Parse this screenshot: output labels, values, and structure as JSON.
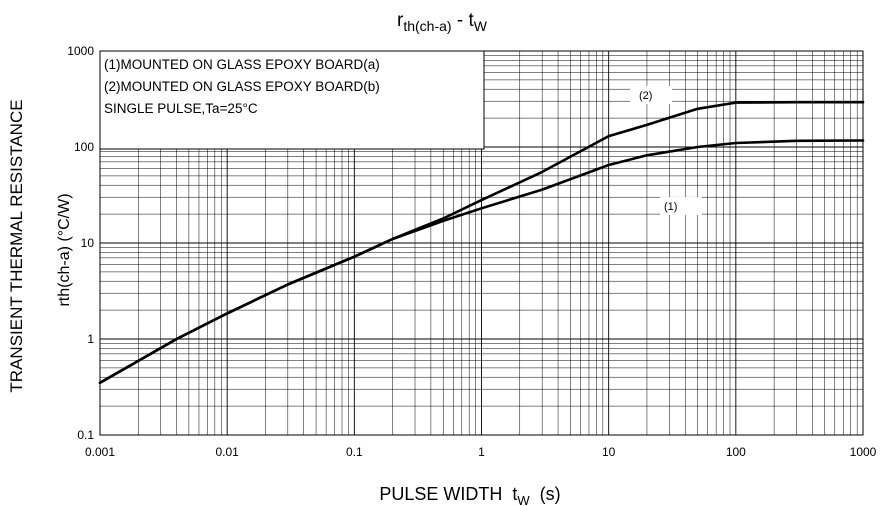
{
  "chart_data": {
    "type": "line",
    "title": {
      "main": "r",
      "main_sub": "th(ch-a)",
      "sep": " - ",
      "var": "t",
      "var_sub": "W"
    },
    "xlabel": {
      "text": "PULSE WIDTH  t",
      "sub": "W",
      "unit": "  (s)"
    },
    "ylabel_outer": "TRANSIENT THERMAL RESISTANCE",
    "ylabel_inner": "rth(ch-a) (°C/W)",
    "x_scale": "log",
    "y_scale": "log",
    "xlim": [
      0.001,
      1000
    ],
    "ylim": [
      0.1,
      1000
    ],
    "grid": true,
    "x_ticks": [
      {
        "value": 0.001,
        "label": "0.001"
      },
      {
        "value": 0.01,
        "label": "0.01"
      },
      {
        "value": 0.1,
        "label": "0.1"
      },
      {
        "value": 1,
        "label": "1"
      },
      {
        "value": 10,
        "label": "10"
      },
      {
        "value": 100,
        "label": "100"
      },
      {
        "value": 1000,
        "label": "1000"
      }
    ],
    "y_ticks": [
      {
        "value": 0.1,
        "label": "0.1"
      },
      {
        "value": 1,
        "label": "1"
      },
      {
        "value": 10,
        "label": "10"
      },
      {
        "value": 100,
        "label": "100"
      },
      {
        "value": 1000,
        "label": "1000"
      }
    ],
    "legend_box": {
      "placement": "top-left",
      "lines": [
        "(1)MOUNTED ON GLASS EPOXY BOARD(a)",
        "(2)MOUNTED ON GLASS EPOXY BOARD(b)",
        "SINGLE PULSE,Ta=25°C"
      ]
    },
    "series": [
      {
        "name": "(1)",
        "label_at": {
          "x": 18,
          "y": 13
        },
        "points": [
          [
            0.001,
            0.35
          ],
          [
            0.004,
            1.0
          ],
          [
            0.01,
            1.85
          ],
          [
            0.03,
            3.7
          ],
          [
            0.1,
            7.2
          ],
          [
            0.2,
            11.0
          ],
          [
            0.5,
            17.0
          ],
          [
            1,
            23.0
          ],
          [
            3,
            36.0
          ],
          [
            10,
            65.0
          ],
          [
            20,
            82.0
          ],
          [
            50,
            100.0
          ],
          [
            100,
            110.0
          ],
          [
            300,
            116.0
          ],
          [
            1000,
            117.0
          ]
        ]
      },
      {
        "name": "(2)",
        "label_at": {
          "x": 30,
          "y": 400
        },
        "points": [
          [
            0.001,
            0.35
          ],
          [
            0.004,
            1.0
          ],
          [
            0.01,
            1.85
          ],
          [
            0.03,
            3.7
          ],
          [
            0.1,
            7.2
          ],
          [
            0.2,
            11.0
          ],
          [
            0.5,
            18.0
          ],
          [
            1,
            28.0
          ],
          [
            3,
            55.0
          ],
          [
            10,
            130.0
          ],
          [
            20,
            170.0
          ],
          [
            50,
            250.0
          ],
          [
            100,
            290.0
          ],
          [
            300,
            293.0
          ],
          [
            1000,
            293.0
          ]
        ]
      }
    ]
  }
}
